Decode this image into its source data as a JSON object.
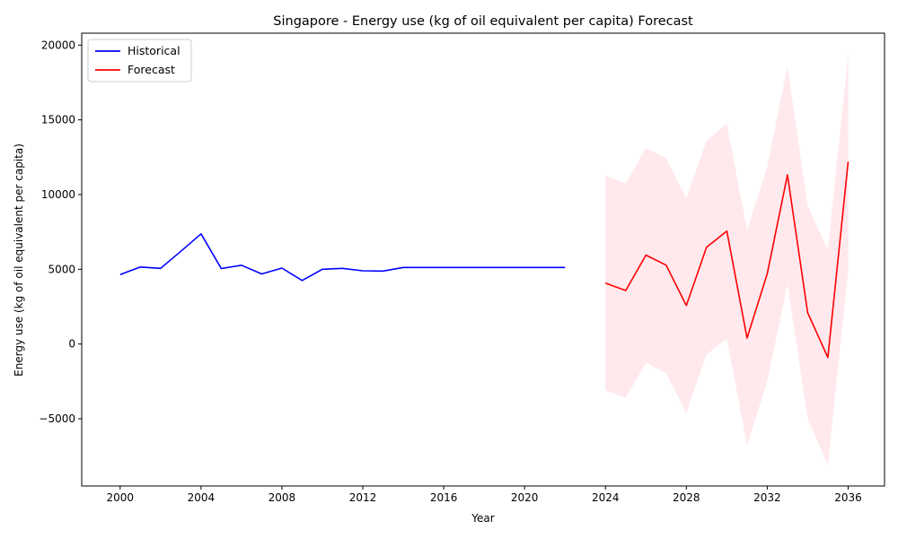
{
  "chart_data": {
    "type": "line",
    "title": "Singapore - Energy use (kg of oil equivalent per capita) Forecast",
    "xlabel": "Year",
    "ylabel": "Energy use (kg of oil equivalent per capita)",
    "xlim": [
      1998.1,
      2037.8
    ],
    "ylim": [
      -9500,
      20800
    ],
    "xticks": [
      2000,
      2004,
      2008,
      2012,
      2016,
      2020,
      2024,
      2028,
      2032,
      2036
    ],
    "yticks": [
      -5000,
      0,
      5000,
      10000,
      15000,
      20000
    ],
    "grid": false,
    "legend_position": "top-left",
    "series": [
      {
        "name": "Historical",
        "color": "#0000ff",
        "x": [
          2000,
          2001,
          2002,
          2003,
          2004,
          2005,
          2006,
          2007,
          2008,
          2009,
          2010,
          2011,
          2012,
          2013,
          2014,
          2015,
          2016,
          2017,
          2018,
          2019,
          2020,
          2021,
          2022
        ],
        "y": [
          4640,
          5150,
          5060,
          6200,
          7370,
          5050,
          5270,
          4690,
          5080,
          4250,
          5000,
          5060,
          4900,
          4880,
          5120,
          5120,
          5120,
          5120,
          5120,
          5120,
          5120,
          5120,
          5120
        ]
      },
      {
        "name": "Forecast",
        "color": "#ff0000",
        "x": [
          2024,
          2025,
          2026,
          2027,
          2028,
          2029,
          2030,
          2031,
          2032,
          2033,
          2034,
          2035,
          2036
        ],
        "y": [
          4080,
          3580,
          5950,
          5280,
          2580,
          6480,
          7560,
          400,
          4700,
          11320,
          2100,
          -900,
          12200
        ]
      }
    ],
    "confidence_band": {
      "color": "#ffc0cb",
      "x": [
        2024,
        2025,
        2026,
        2027,
        2028,
        2029,
        2030,
        2031,
        2032,
        2033,
        2034,
        2035,
        2036
      ],
      "upper": [
        11250,
        10750,
        13100,
        12450,
        9750,
        13600,
        14750,
        7650,
        11850,
        18600,
        9250,
        6300,
        19400
      ],
      "lower": [
        -3100,
        -3600,
        -1250,
        -1950,
        -4600,
        -700,
        350,
        -6800,
        -2500,
        4000,
        -5000,
        -8100,
        4900
      ]
    }
  }
}
